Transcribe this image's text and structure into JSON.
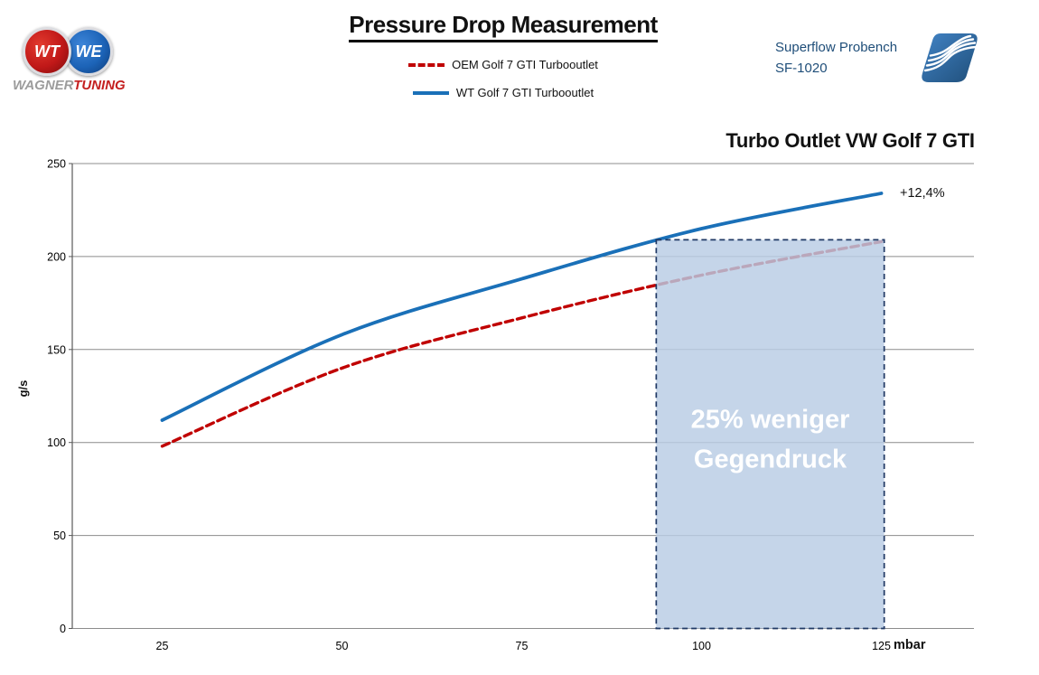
{
  "header": {
    "title": "Pressure Drop Measurement",
    "wagner_logo": {
      "monogram_left": "WT",
      "monogram_right": "WE",
      "brand_gray": "WAGNER",
      "brand_red": "TUNING"
    },
    "superflow": {
      "line1": "Superflow Probench",
      "line2": "SF-1020"
    }
  },
  "legend": [
    {
      "label": "OEM Golf 7 GTI Turbooutlet",
      "color": "#c00000",
      "dash": true
    },
    {
      "label": "WT Golf 7 GTI Turbooutlet",
      "color": "#1a70b8",
      "dash": false
    }
  ],
  "chart_data": {
    "type": "line",
    "title": "Turbo Outlet VW Golf 7 GTI",
    "xlabel": "mbar",
    "ylabel": "g/s",
    "x": [
      25,
      50,
      75,
      100,
      125
    ],
    "ylim": [
      0,
      250
    ],
    "y_ticks": [
      0,
      50,
      100,
      150,
      200,
      250
    ],
    "grid": true,
    "legend_position": "top",
    "series": [
      {
        "name": "OEM Golf 7 GTI Turbooutlet",
        "color": "#c00000",
        "dash": true,
        "values": [
          98,
          140,
          167,
          190,
          208
        ]
      },
      {
        "name": "WT Golf 7 GTI Turbooutlet",
        "color": "#1a70b8",
        "dash": false,
        "values": [
          112,
          158,
          188,
          215,
          234
        ]
      }
    ],
    "annotation": {
      "text": "+12,4%"
    },
    "highlight_region": {
      "x_from": 93.7,
      "x_to": 125.4,
      "y_from": 0,
      "y_to": 209,
      "label_line1": "25% weniger",
      "label_line2": "Gegendruck",
      "fill": "#b8cce4",
      "border": "#1f3864",
      "label_color": "#ffffff"
    },
    "colors": {
      "gridline": "#8c8c8c",
      "axis": "#595959",
      "tick_text": "#000000"
    }
  }
}
